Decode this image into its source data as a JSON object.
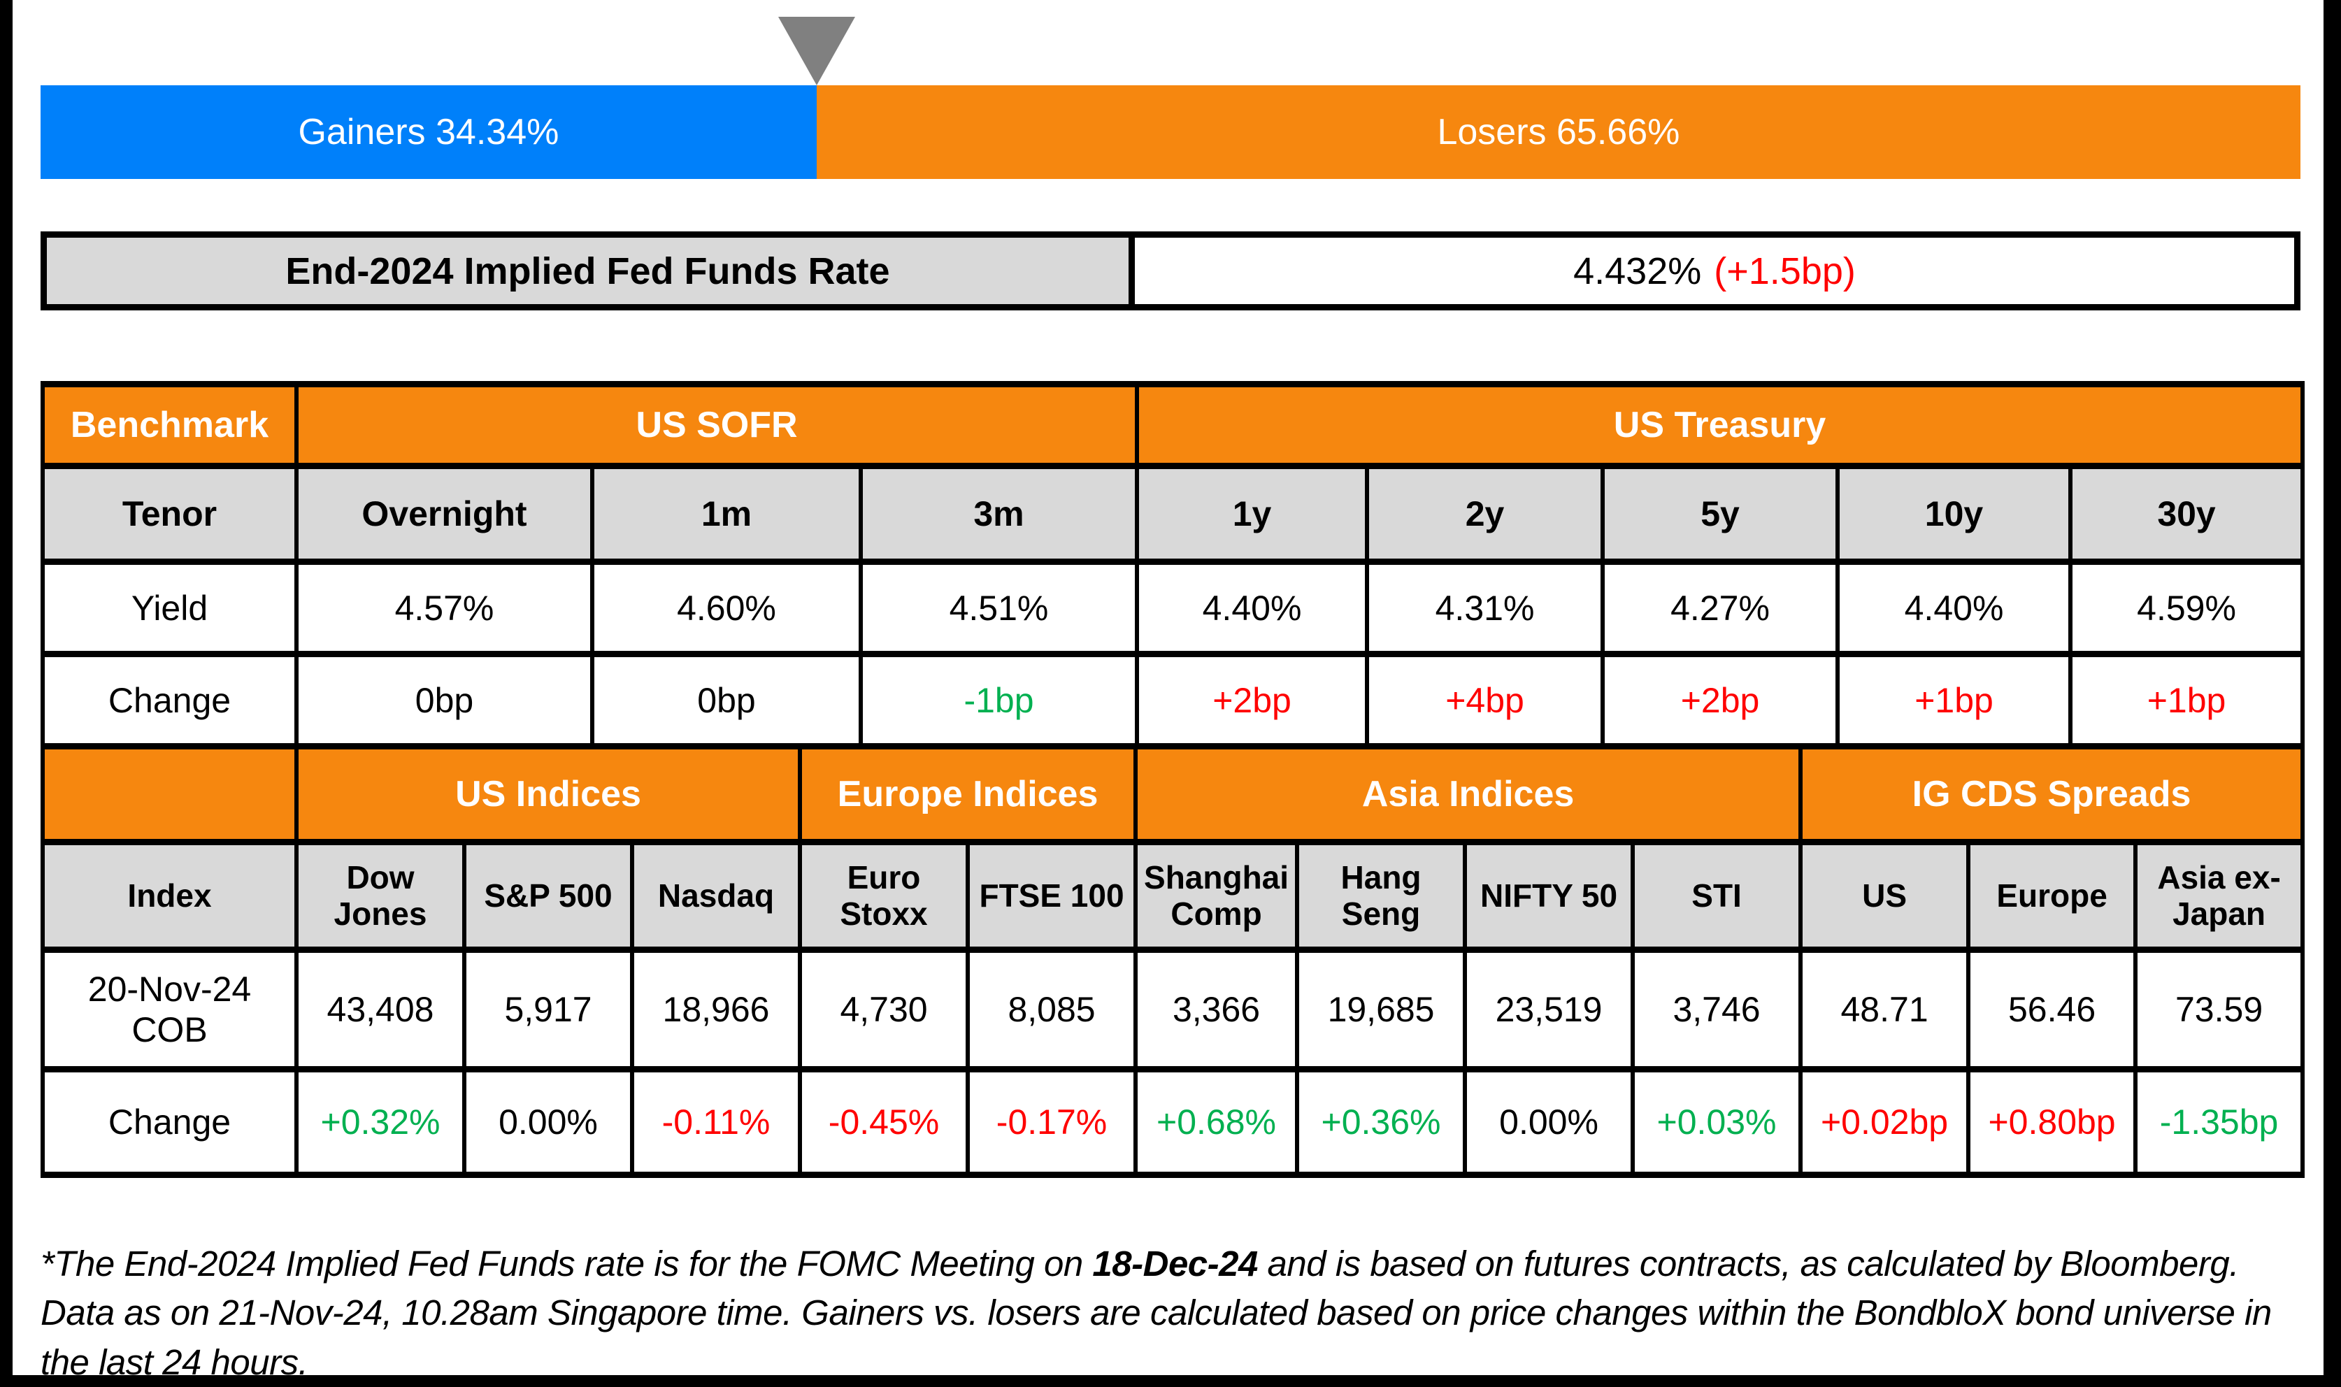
{
  "colors": {
    "gainers_blue": "#0080FA",
    "losers_orange": "#F6870F",
    "header_orange": "#F6870F",
    "cell_gray": "#D9D9D9",
    "positive_green": "#00B050",
    "negative_red": "#FF0000",
    "neutral_black": "#000000",
    "pointer_gray": "#808080"
  },
  "bar": {
    "gainers_label": "Gainers 34.34%",
    "losers_label": "Losers 65.66%",
    "gainers_pct": 34.34,
    "losers_pct": 65.66
  },
  "fed_funds": {
    "label": "End-2024 Implied Fed Funds Rate",
    "value": "4.432%",
    "change": "(+1.5bp)"
  },
  "benchmark_table": {
    "corner_label": "Benchmark",
    "groups": [
      {
        "label": "US SOFR",
        "span": 3
      },
      {
        "label": "US Treasury",
        "span": 5
      }
    ],
    "row_labels": [
      "Tenor",
      "Yield",
      "Change"
    ],
    "columns": [
      {
        "tenor": "Overnight",
        "yield": "4.57%",
        "change": "0bp",
        "change_color": "#000000"
      },
      {
        "tenor": "1m",
        "yield": "4.60%",
        "change": "0bp",
        "change_color": "#000000"
      },
      {
        "tenor": "3m",
        "yield": "4.51%",
        "change": "-1bp",
        "change_color": "#00B050"
      },
      {
        "tenor": "1y",
        "yield": "4.40%",
        "change": "+2bp",
        "change_color": "#FF0000"
      },
      {
        "tenor": "2y",
        "yield": "4.31%",
        "change": "+4bp",
        "change_color": "#FF0000"
      },
      {
        "tenor": "5y",
        "yield": "4.27%",
        "change": "+2bp",
        "change_color": "#FF0000"
      },
      {
        "tenor": "10y",
        "yield": "4.40%",
        "change": "+1bp",
        "change_color": "#FF0000"
      },
      {
        "tenor": "30y",
        "yield": "4.59%",
        "change": "+1bp",
        "change_color": "#FF0000"
      }
    ]
  },
  "indices_table": {
    "corner_label": "",
    "groups": [
      {
        "label": "US Indices",
        "span": 3
      },
      {
        "label": "Europe Indices",
        "span": 2
      },
      {
        "label": "Asia Indices",
        "span": 4
      },
      {
        "label": "IG CDS Spreads",
        "span": 3
      }
    ],
    "row_labels": [
      "Index",
      "20-Nov-24 COB",
      "Change"
    ],
    "columns": [
      {
        "name": "Dow Jones",
        "value": "43,408",
        "change": "+0.32%",
        "change_color": "#00B050"
      },
      {
        "name": "S&P 500",
        "value": "5,917",
        "change": "0.00%",
        "change_color": "#000000"
      },
      {
        "name": "Nasdaq",
        "value": "18,966",
        "change": "-0.11%",
        "change_color": "#FF0000"
      },
      {
        "name": "Euro Stoxx",
        "value": "4,730",
        "change": "-0.45%",
        "change_color": "#FF0000"
      },
      {
        "name": "FTSE 100",
        "value": "8,085",
        "change": "-0.17%",
        "change_color": "#FF0000"
      },
      {
        "name": "Shanghai Comp",
        "value": "3,366",
        "change": "+0.68%",
        "change_color": "#00B050"
      },
      {
        "name": "Hang Seng",
        "value": "19,685",
        "change": "+0.36%",
        "change_color": "#00B050"
      },
      {
        "name": "NIFTY 50",
        "value": "23,519",
        "change": "0.00%",
        "change_color": "#000000"
      },
      {
        "name": "STI",
        "value": "3,746",
        "change": "+0.03%",
        "change_color": "#00B050"
      },
      {
        "name": "US",
        "value": "48.71",
        "change": "+0.02bp",
        "change_color": "#FF0000"
      },
      {
        "name": "Europe",
        "value": "56.46",
        "change": "+0.80bp",
        "change_color": "#FF0000"
      },
      {
        "name": "Asia ex-Japan",
        "value": "73.59",
        "change": "-1.35bp",
        "change_color": "#00B050"
      }
    ]
  },
  "footnote": {
    "part1": "*The End-2024 Implied Fed Funds rate is for the FOMC Meeting on ",
    "bold": "18-Dec-24",
    "part2": " and is based on futures contracts, as calculated by Bloomberg. Data as on 21-Nov-24, 10.28am Singapore time. Gainers vs. losers are calculated based on price changes within the BondbloX bond universe in the last 24 hours."
  },
  "chart_data": [
    {
      "type": "bar",
      "title": "Gainers vs Losers (% of BondbloX bond universe, last 24 hours)",
      "categories": [
        "Gainers",
        "Losers"
      ],
      "values": [
        34.34,
        65.66
      ],
      "layout": "horizontal-stacked",
      "colors": [
        "#0080FA",
        "#F6870F"
      ]
    },
    {
      "type": "table",
      "title": "Benchmark",
      "columns": [
        "Tenor",
        "Overnight",
        "1m",
        "3m",
        "1y",
        "2y",
        "5y",
        "10y",
        "30y"
      ],
      "groups": [
        "US SOFR (Overnight-3m)",
        "US Treasury (1y-30y)"
      ],
      "rows": [
        [
          "Yield",
          "4.57%",
          "4.60%",
          "4.51%",
          "4.40%",
          "4.31%",
          "4.27%",
          "4.40%",
          "4.59%"
        ],
        [
          "Change",
          "0bp",
          "0bp",
          "-1bp",
          "+2bp",
          "+4bp",
          "+2bp",
          "+1bp",
          "+1bp"
        ]
      ]
    },
    {
      "type": "table",
      "title": "Indices and IG CDS Spreads",
      "columns": [
        "Index",
        "Dow Jones",
        "S&P 500",
        "Nasdaq",
        "Euro Stoxx",
        "FTSE 100",
        "Shanghai Comp",
        "Hang Seng",
        "NIFTY 50",
        "STI",
        "US",
        "Europe",
        "Asia ex-Japan"
      ],
      "groups": [
        "US Indices",
        "Europe Indices",
        "Asia Indices",
        "IG CDS Spreads"
      ],
      "rows": [
        [
          "20-Nov-24 COB",
          "43,408",
          "5,917",
          "18,966",
          "4,730",
          "8,085",
          "3,366",
          "19,685",
          "23,519",
          "3,746",
          "48.71",
          "56.46",
          "73.59"
        ],
        [
          "Change",
          "+0.32%",
          "0.00%",
          "-0.11%",
          "-0.45%",
          "-0.17%",
          "+0.68%",
          "+0.36%",
          "0.00%",
          "+0.03%",
          "+0.02bp",
          "+0.80bp",
          "-1.35bp"
        ]
      ]
    }
  ]
}
